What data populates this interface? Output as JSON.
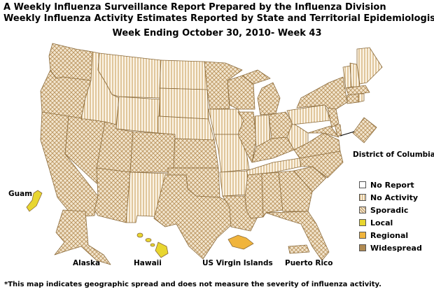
{
  "title_line1": "A Weekly Influenza Surveillance Report Prepared by the Influenza Division",
  "title_line2": "Weekly Influenza Activity Estimates Reported by State and Territorial Epidemiologists*",
  "week_label": "Week Ending October 30, 2010- Week 43",
  "footnote": "*This map indicates geographic spread and does not measure the severity of influenza activity.",
  "labels": {
    "dc": "District of Columbia",
    "guam": "Guam",
    "alaska": "Alaska",
    "hawaii": "Hawaii",
    "usvi": "US Virgin Islands",
    "pr": "Puerto Rico"
  },
  "legend": [
    {
      "label": "No Report",
      "pattern": "no-report"
    },
    {
      "label": "No Activity",
      "pattern": "no-activity"
    },
    {
      "label": "Sporadic",
      "pattern": "sporadic"
    },
    {
      "label": "Local",
      "pattern": "local"
    },
    {
      "label": "Regional",
      "pattern": "regional"
    },
    {
      "label": "Widespread",
      "pattern": "widespread"
    }
  ],
  "colors": {
    "local": "#e8d630",
    "regional": "#f0b43c",
    "widespread": "#b08a52",
    "hatch": "#c8a878",
    "border": "#8a6a3a"
  },
  "activity": {
    "sporadic": [
      "Washington",
      "Oregon",
      "California",
      "Nevada",
      "Arizona",
      "Utah",
      "Colorado",
      "Kansas",
      "Oklahoma",
      "Texas",
      "Minnesota",
      "Wisconsin",
      "Illinois",
      "Michigan",
      "Ohio",
      "Kentucky",
      "Louisiana",
      "Mississippi",
      "Alabama",
      "Georgia",
      "Florida",
      "South Carolina",
      "North Carolina",
      "Virginia",
      "Maryland",
      "Delaware",
      "New Jersey",
      "New York",
      "Massachusetts",
      "Connecticut",
      "District of Columbia",
      "Alaska",
      "Puerto Rico"
    ],
    "no_activity": [
      "Idaho",
      "Montana",
      "Wyoming",
      "North Dakota",
      "South Dakota",
      "Nebraska",
      "New Mexico",
      "Iowa",
      "Missouri",
      "Arkansas",
      "Tennessee",
      "Indiana",
      "West Virginia",
      "Pennsylvania",
      "Maine",
      "New Hampshire",
      "Vermont",
      "Rhode Island"
    ],
    "local": [
      "Guam",
      "Hawaii"
    ],
    "regional": [
      "US Virgin Islands"
    ]
  }
}
